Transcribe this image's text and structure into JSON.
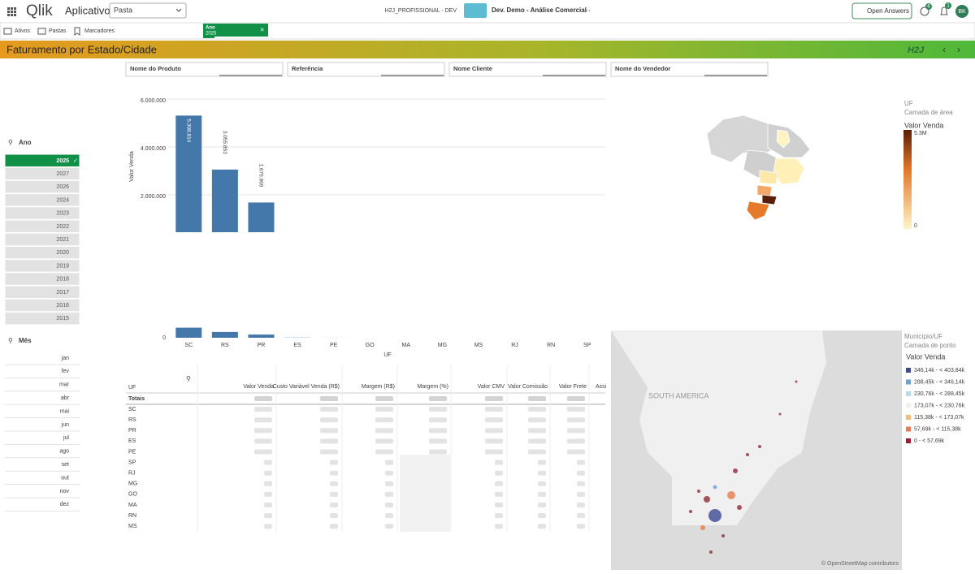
{
  "header": {
    "logo": "Qlik",
    "app_label": "Aplicativo",
    "sheet_select": "Pasta",
    "space": "H2J_PROFISSIONAL - DEV",
    "app_name": "Dev. Demo - Análise Comercial",
    "open_answers": "Open Answers",
    "help_badge": "6",
    "notif_badge": "1",
    "user": "BK"
  },
  "toolbar": {
    "items": [
      "Ativos",
      "Pastas",
      "Marcadores"
    ],
    "selection": {
      "field": "Ano",
      "value": "2025"
    }
  },
  "sheet_title": "Faturamento por Estado/Cidade",
  "banner_logo": "H2J",
  "filters": [
    "Nome do Produto",
    "Referência",
    "Nome Cliente",
    "Nome do Vendedor"
  ],
  "year_filter": {
    "title": "Ano",
    "options": [
      "2025",
      "2027",
      "2026",
      "2024",
      "2023",
      "2022",
      "2021",
      "2020",
      "2019",
      "2018",
      "2017",
      "2016",
      "2015"
    ]
  },
  "month_filter": {
    "title": "Mês",
    "options": [
      "jan",
      "fev",
      "mar",
      "abr",
      "mai",
      "jun",
      "jul",
      "ago",
      "set",
      "out",
      "nov",
      "dez"
    ]
  },
  "chart_data": {
    "type": "bar",
    "y_label": "Valor Venda",
    "x_label": "UF",
    "color": "#4477aa",
    "categories": [
      "SC",
      "RS",
      "PR",
      "ES",
      "PE",
      "GO",
      "MA",
      "MG",
      "MS",
      "RJ",
      "RN",
      "SP"
    ],
    "values": [
      5308814,
      3055853,
      1679869,
      100000,
      20000,
      0,
      0,
      0,
      0,
      0,
      0,
      0
    ],
    "value_labels": [
      "5.308.814",
      "3.055.853",
      "1.679.869",
      null,
      null,
      null,
      null,
      null,
      null,
      null,
      null,
      null
    ],
    "ylim": [
      0,
      6000000
    ],
    "yticks": [
      {
        "value": 2000000,
        "label": "2.000.000"
      },
      {
        "value": 4000000,
        "label": "4.000.000"
      },
      {
        "value": 6000000,
        "label": "6.000.000"
      }
    ],
    "mini_ytick": 0,
    "grid": true
  },
  "area_map": {
    "title": "UF",
    "layer": "Camada de área",
    "measure": "Valor Venda",
    "legend_max": "5.3M",
    "legend_min": "0"
  },
  "point_map": {
    "title": "Município/UF",
    "layer": "Camada de ponto",
    "measure": "Valor Venda",
    "region_label": "SOUTH AMERICA",
    "attribution": "© OpenStreetMap contributors",
    "legend": [
      {
        "label": "346,14k - < 403,84k",
        "color": "#3b4a95"
      },
      {
        "label": "288,45k - < 346,14k",
        "color": "#6aa3d6"
      },
      {
        "label": "230,76k - < 288,45k",
        "color": "#b5dbe9"
      },
      {
        "label": "173,07k - < 230,76k",
        "color": "#eef6ea"
      },
      {
        "label": "115,38k - < 173,07k",
        "color": "#f3bd78"
      },
      {
        "label": "57,69k - < 115,38k",
        "color": "#e67c4c"
      },
      {
        "label": "0 - < 57,69k",
        "color": "#9e1c2e"
      }
    ]
  },
  "table": {
    "columns": [
      "UF",
      "Valor Venda",
      "Custo Variável Venda (R$)",
      "Margem (R$)",
      "Margem (%)",
      "Valor CMV",
      "Valor Comissão",
      "Valor Frete",
      "Assi"
    ],
    "rows": [
      "Totais",
      "SC",
      "RS",
      "PR",
      "ES",
      "PE",
      "SP",
      "RJ",
      "MG",
      "GO",
      "MA",
      "RN",
      "MS"
    ]
  }
}
